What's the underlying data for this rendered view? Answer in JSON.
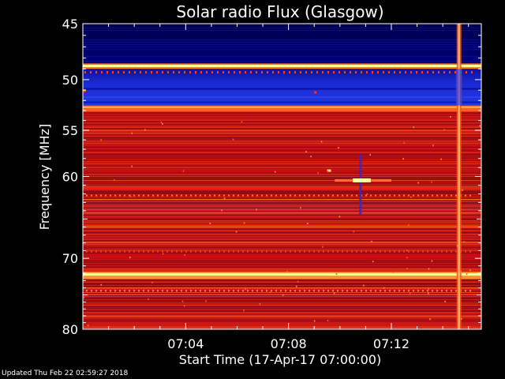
{
  "footer": "Updated Thu Feb 22 02:59:27 2018",
  "colors": {
    "background": "#000000",
    "scale_low": "#000030",
    "scale_mid_blue": "#1a2bd6",
    "scale_red": "#c4101a",
    "scale_high": "#ffff80"
  },
  "chart_data": {
    "type": "heatmap",
    "title": "Solar radio Flux (Glasgow)",
    "xlabel": "Start Time (17-Apr-17 07:00:00)",
    "ylabel": "Frequency [MHz]",
    "xlim": [
      "07:00:00",
      "07:15:30"
    ],
    "ylim": [
      45,
      80
    ],
    "y_reversed": true,
    "y_scale": "log",
    "x_ticks": [
      "07:04",
      "07:08",
      "07:12"
    ],
    "x_tick_values_min": [
      4,
      8,
      12
    ],
    "y_ticks": [
      45,
      50,
      55,
      60,
      70,
      80
    ],
    "colormap": "dark blue - blue - red - yellow",
    "bands": [
      {
        "f_start": 45.0,
        "f_end": 48.5,
        "level": "low"
      },
      {
        "f_start": 48.5,
        "f_end": 49.0,
        "level": "high"
      },
      {
        "f_start": 49.0,
        "f_end": 52.5,
        "level": "blue"
      },
      {
        "f_start": 52.5,
        "f_end": 53.0,
        "level": "high-red"
      },
      {
        "f_start": 53.0,
        "f_end": 80.0,
        "level": "red"
      },
      {
        "f_start": 72.0,
        "f_end": 72.6,
        "level": "high"
      }
    ],
    "features": [
      {
        "type": "burst",
        "time_min": 10.8,
        "freq": 60.4,
        "level": "high"
      },
      {
        "type": "spike",
        "time_min": 9.5,
        "freq": 59.3,
        "level": "high"
      },
      {
        "type": "vertical_line",
        "time_min": 14.6,
        "freq_range": [
          45,
          80
        ],
        "level": "red-yellow"
      },
      {
        "type": "vertical_gap",
        "time_min": 10.8,
        "freq_range": [
          58,
          64
        ],
        "level": "blue"
      }
    ]
  }
}
